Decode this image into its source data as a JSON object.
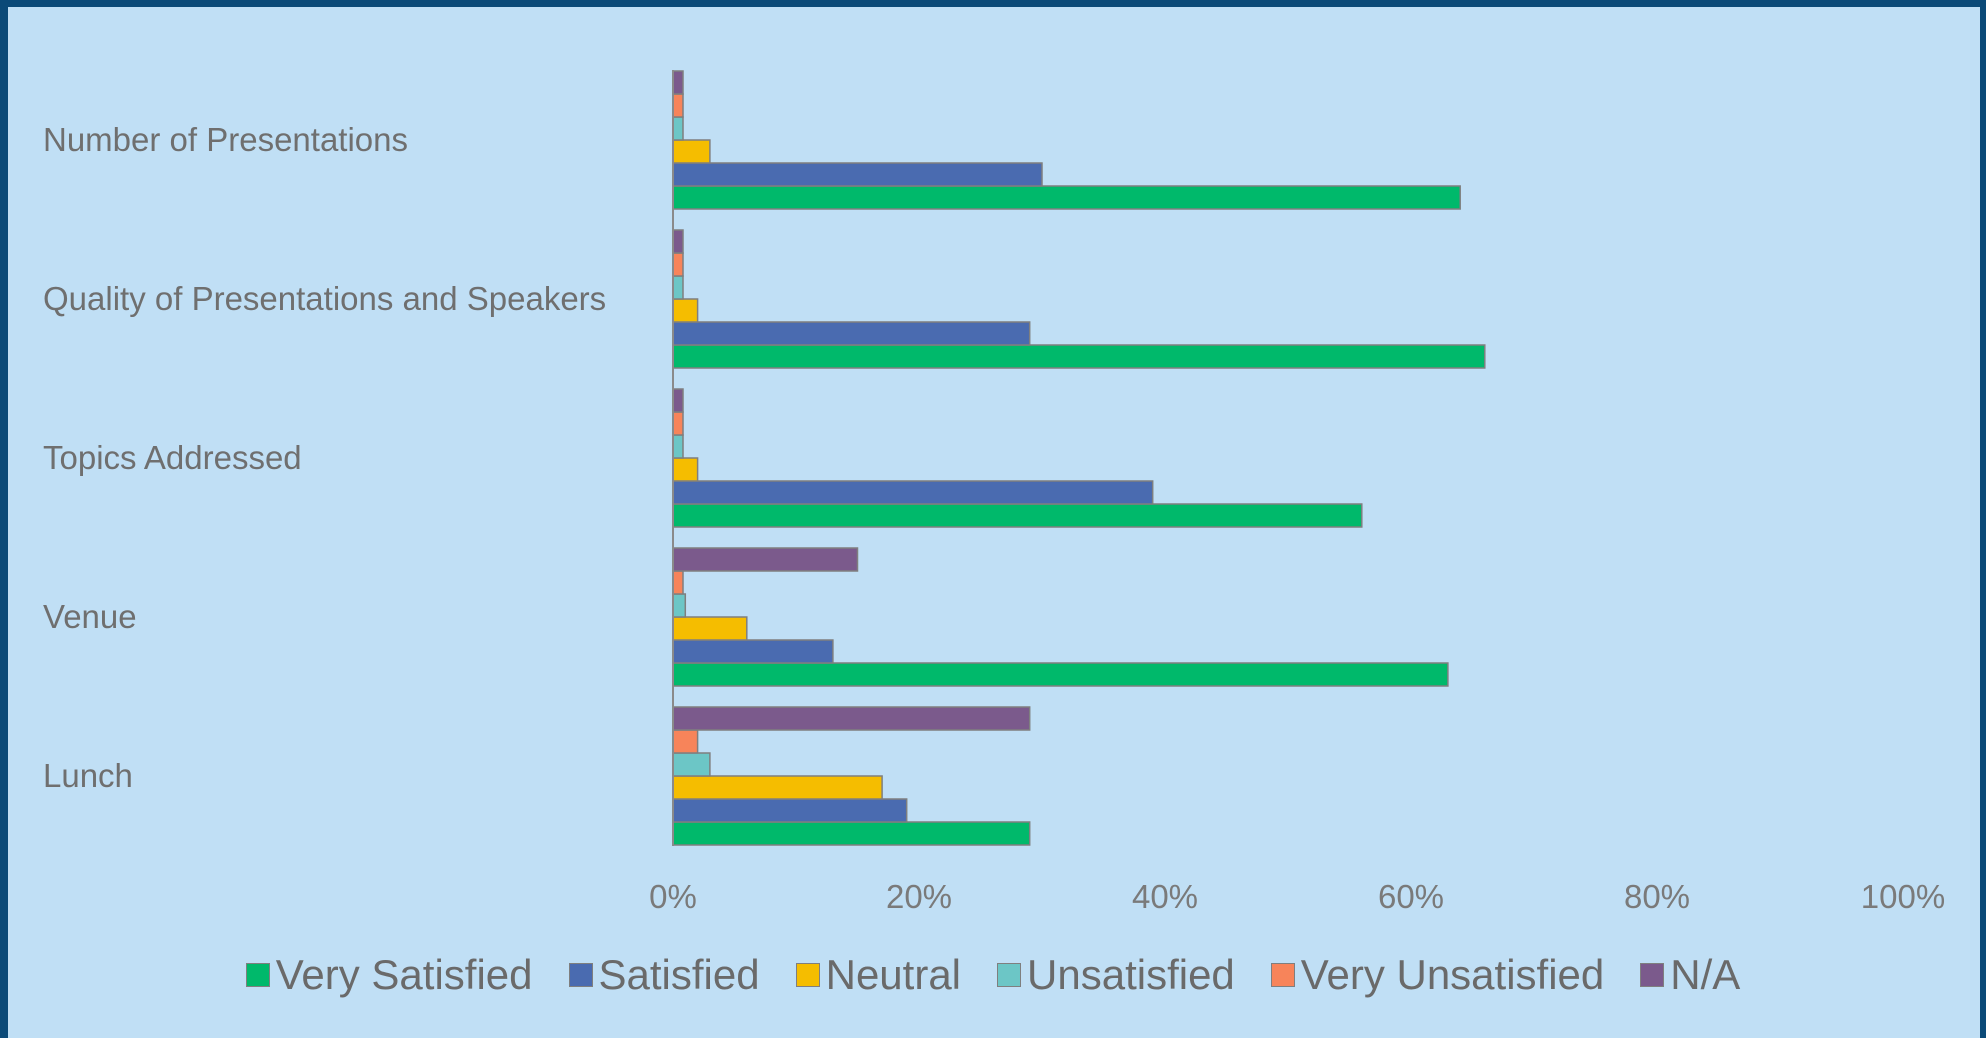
{
  "chart_data": {
    "type": "bar",
    "orientation": "horizontal",
    "categories": [
      "Number of Presentations",
      "Quality of Presentations and Speakers",
      "Topics Addressed",
      "Venue",
      "Lunch"
    ],
    "series": [
      {
        "name": "Very Satisfied",
        "color": "#00b96b",
        "values": [
          64,
          66,
          56,
          63,
          29
        ]
      },
      {
        "name": "Satisfied",
        "color": "#4a6bb0",
        "values": [
          30,
          29,
          39,
          13,
          19
        ]
      },
      {
        "name": "Neutral",
        "color": "#f5bd00",
        "values": [
          3,
          2,
          2,
          6,
          17
        ]
      },
      {
        "name": "Unsatisfied",
        "color": "#6cc6c6",
        "values": [
          0,
          0,
          0,
          1,
          3
        ]
      },
      {
        "name": "Very Unsatisfied",
        "color": "#f7845a",
        "values": [
          0,
          0,
          0,
          0,
          2
        ]
      },
      {
        "name": "N/A",
        "color": "#7b5a8c",
        "values": [
          0,
          0,
          0,
          15,
          29
        ]
      }
    ],
    "xlim": [
      0,
      100
    ],
    "xticks": [
      "0%",
      "20%",
      "40%",
      "60%",
      "80%",
      "100%"
    ],
    "legend_position": "bottom",
    "grid": false,
    "title": "",
    "xlabel": "",
    "ylabel": ""
  }
}
